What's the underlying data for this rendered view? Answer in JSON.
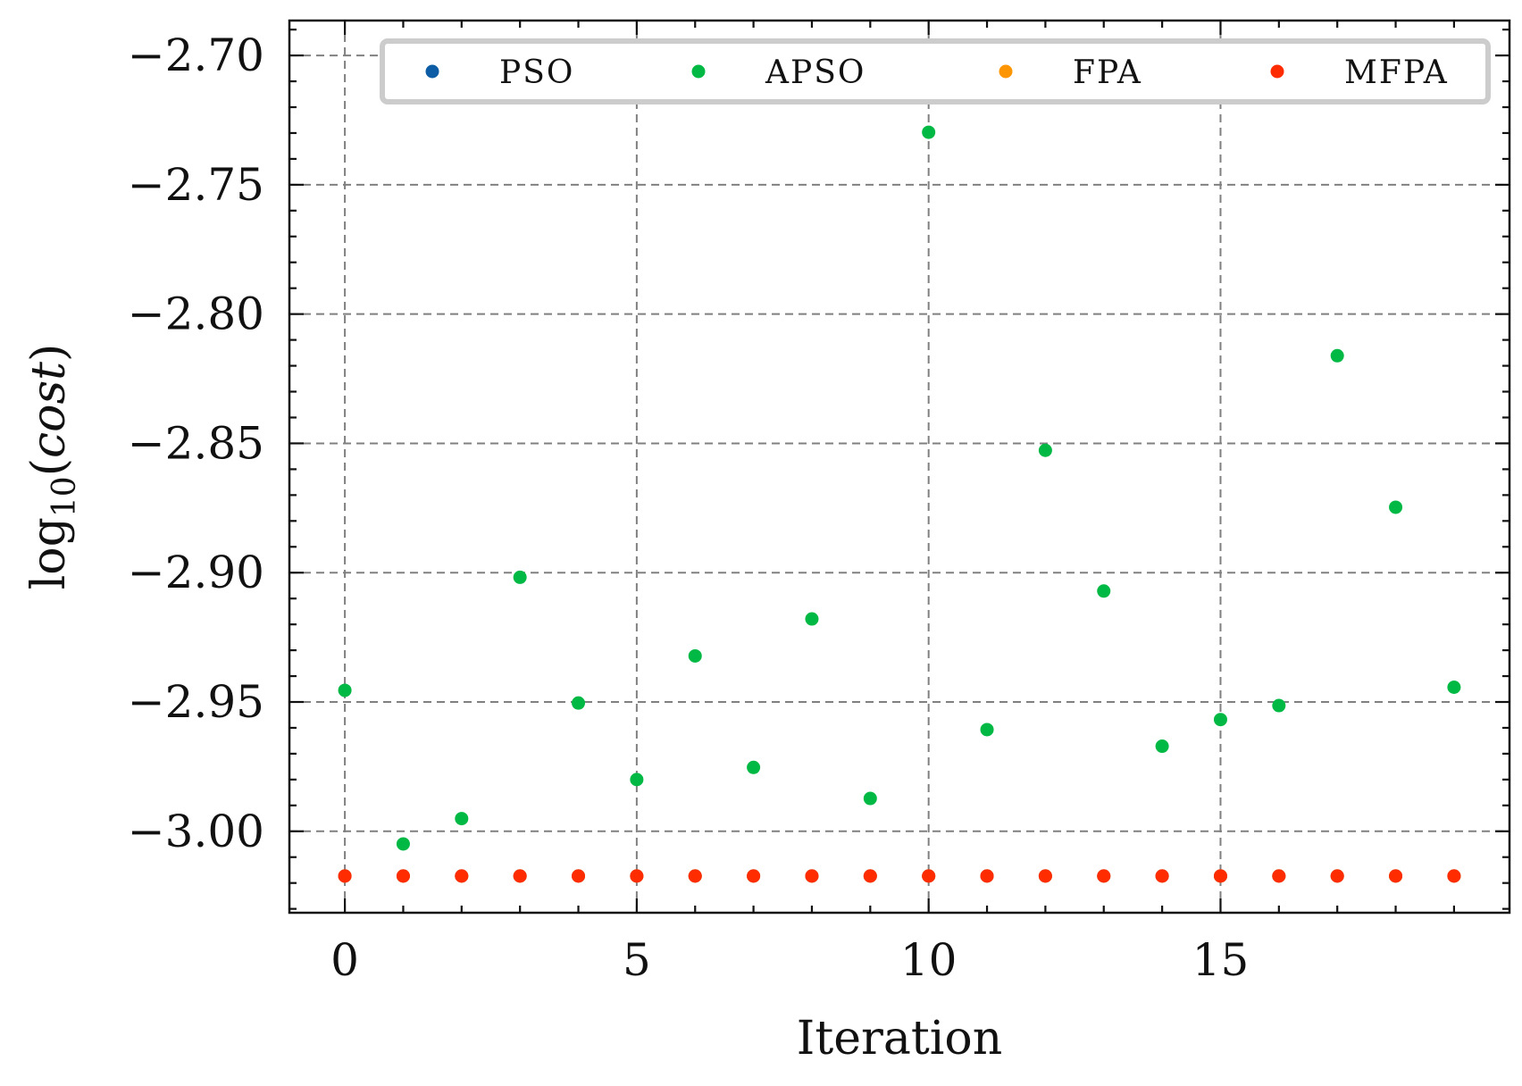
{
  "chart_data": {
    "type": "scatter",
    "title": "",
    "xlabel": "Iteration",
    "ylabel": "log10(cost)",
    "xlim": [
      -0.95,
      19.95
    ],
    "ylim": [
      -3.0315,
      -2.6865
    ],
    "xticks": [
      0,
      5,
      10,
      15
    ],
    "yticks": [
      -3.0,
      -2.95,
      -2.9,
      -2.85,
      -2.8,
      -2.75,
      -2.7
    ],
    "ytick_labels": [
      "−3.00",
      "−2.95",
      "−2.90",
      "−2.85",
      "−2.80",
      "−2.75",
      "−2.70"
    ],
    "grid": true,
    "legend_position": "top",
    "x": [
      0,
      1,
      2,
      3,
      4,
      5,
      6,
      7,
      8,
      9,
      10,
      11,
      12,
      13,
      14,
      15,
      16,
      17,
      18,
      19
    ],
    "series": [
      {
        "name": "PSO",
        "color": "#0C5DA5",
        "values": [
          -3.0173,
          -3.0173,
          -3.0173,
          -3.0173,
          -3.0173,
          -3.0173,
          -3.0173,
          -3.0173,
          -3.0173,
          -3.0173,
          -3.0173,
          -3.0173,
          -3.0173,
          -3.0173,
          -3.0173,
          -3.0173,
          -3.0173,
          -3.0173,
          -3.0173,
          -3.0173
        ]
      },
      {
        "name": "APSO",
        "color": "#00B945",
        "values": [
          -2.9455,
          -3.0049,
          -2.9951,
          -2.9018,
          -2.9504,
          -2.98,
          -2.9322,
          -2.9753,
          -2.9179,
          -2.9873,
          -2.7297,
          -2.9607,
          -2.8527,
          -2.9071,
          -2.9671,
          -2.9568,
          -2.9514,
          -2.8161,
          -2.8747,
          -2.9443
        ]
      },
      {
        "name": "FPA",
        "color": "#FF9500",
        "values": [
          -3.0173,
          -3.0173,
          -3.0173,
          -3.0173,
          -3.0173,
          -3.0173,
          -3.0173,
          -3.0173,
          -3.0173,
          -3.0173,
          -3.0173,
          -3.0173,
          -3.0173,
          -3.0173,
          -3.0173,
          -3.0173,
          -3.0173,
          -3.0173,
          -3.0173,
          -3.0173
        ]
      },
      {
        "name": "MFPA",
        "color": "#FF2C00",
        "values": [
          -3.0173,
          -3.0173,
          -3.0173,
          -3.0173,
          -3.0173,
          -3.0173,
          -3.0173,
          -3.0173,
          -3.0173,
          -3.0173,
          -3.0173,
          -3.0173,
          -3.0173,
          -3.0173,
          -3.0173,
          -3.0173,
          -3.0173,
          -3.0173,
          -3.0173,
          -3.0173
        ]
      }
    ]
  }
}
